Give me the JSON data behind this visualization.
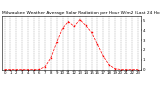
{
  "title": "Milwaukee Weather Average Solar Radiation per Hour W/m2 (Last 24 Hours)",
  "hours": [
    0,
    1,
    2,
    3,
    4,
    5,
    6,
    7,
    8,
    9,
    10,
    11,
    12,
    13,
    14,
    15,
    16,
    17,
    18,
    19,
    20,
    21,
    22,
    23
  ],
  "values": [
    0,
    0,
    0,
    0,
    0,
    0,
    2,
    30,
    120,
    280,
    420,
    490,
    440,
    510,
    450,
    380,
    260,
    140,
    50,
    10,
    1,
    0,
    0,
    0
  ],
  "line_color": "#ff0000",
  "bg_color": "#ffffff",
  "grid_color": "#999999",
  "ylim": [
    0,
    550
  ],
  "xlim": [
    -0.5,
    23.5
  ],
  "ytick_values": [
    0,
    100,
    200,
    300,
    400,
    500
  ],
  "ytick_labels": [
    "0",
    "1",
    "2",
    "3",
    "4",
    "5"
  ],
  "title_fontsize": 3.2,
  "tick_fontsize": 2.8,
  "linewidth": 0.5,
  "markersize": 1.0
}
